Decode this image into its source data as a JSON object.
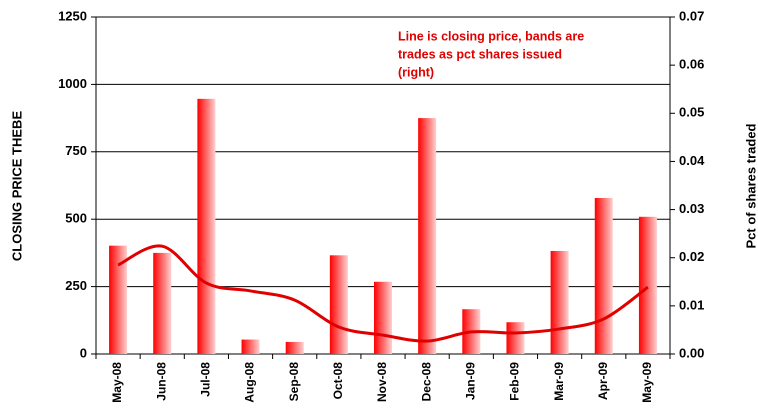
{
  "chart_data": {
    "type": "bar-line",
    "annotation": [
      "Line is closing price, bands are",
      "trades as pct shares issued",
      "(right)"
    ],
    "y_label": "CLOSING PRICE THEBE",
    "y2_label": "Pct of shares traded",
    "categories": [
      "May-08",
      "Jun-08",
      "Jul-08",
      "Aug-08",
      "Sep-08",
      "Oct-08",
      "Nov-08",
      "Dec-08",
      "Jan-09",
      "Feb-09",
      "Mar-09",
      "Apr-09",
      "May-09"
    ],
    "series": [
      {
        "name": "Pct of shares traded",
        "type": "bar",
        "axis": "y2",
        "color": "#ff0000",
        "values": [
          0.0225,
          0.021,
          0.053,
          0.003,
          0.0025,
          0.0205,
          0.015,
          0.049,
          0.0093,
          0.0066,
          0.0214,
          0.0324,
          0.0285
        ]
      },
      {
        "name": "Closing price",
        "type": "line",
        "axis": "y",
        "color": "#e00000",
        "values": [
          330,
          400,
          263,
          234,
          200,
          100,
          70,
          48,
          82,
          78,
          93,
          130,
          248
        ]
      }
    ],
    "ylim": [
      0,
      1250
    ],
    "yticks": [
      0,
      250,
      500,
      750,
      1000,
      1250
    ],
    "y2lim": [
      0,
      0.07
    ],
    "y2ticks": [
      {
        "value": 0,
        "label": "0.00"
      },
      0.01,
      0.02,
      0.03,
      0.04,
      0.05,
      0.06,
      0.07
    ],
    "grid": true
  }
}
